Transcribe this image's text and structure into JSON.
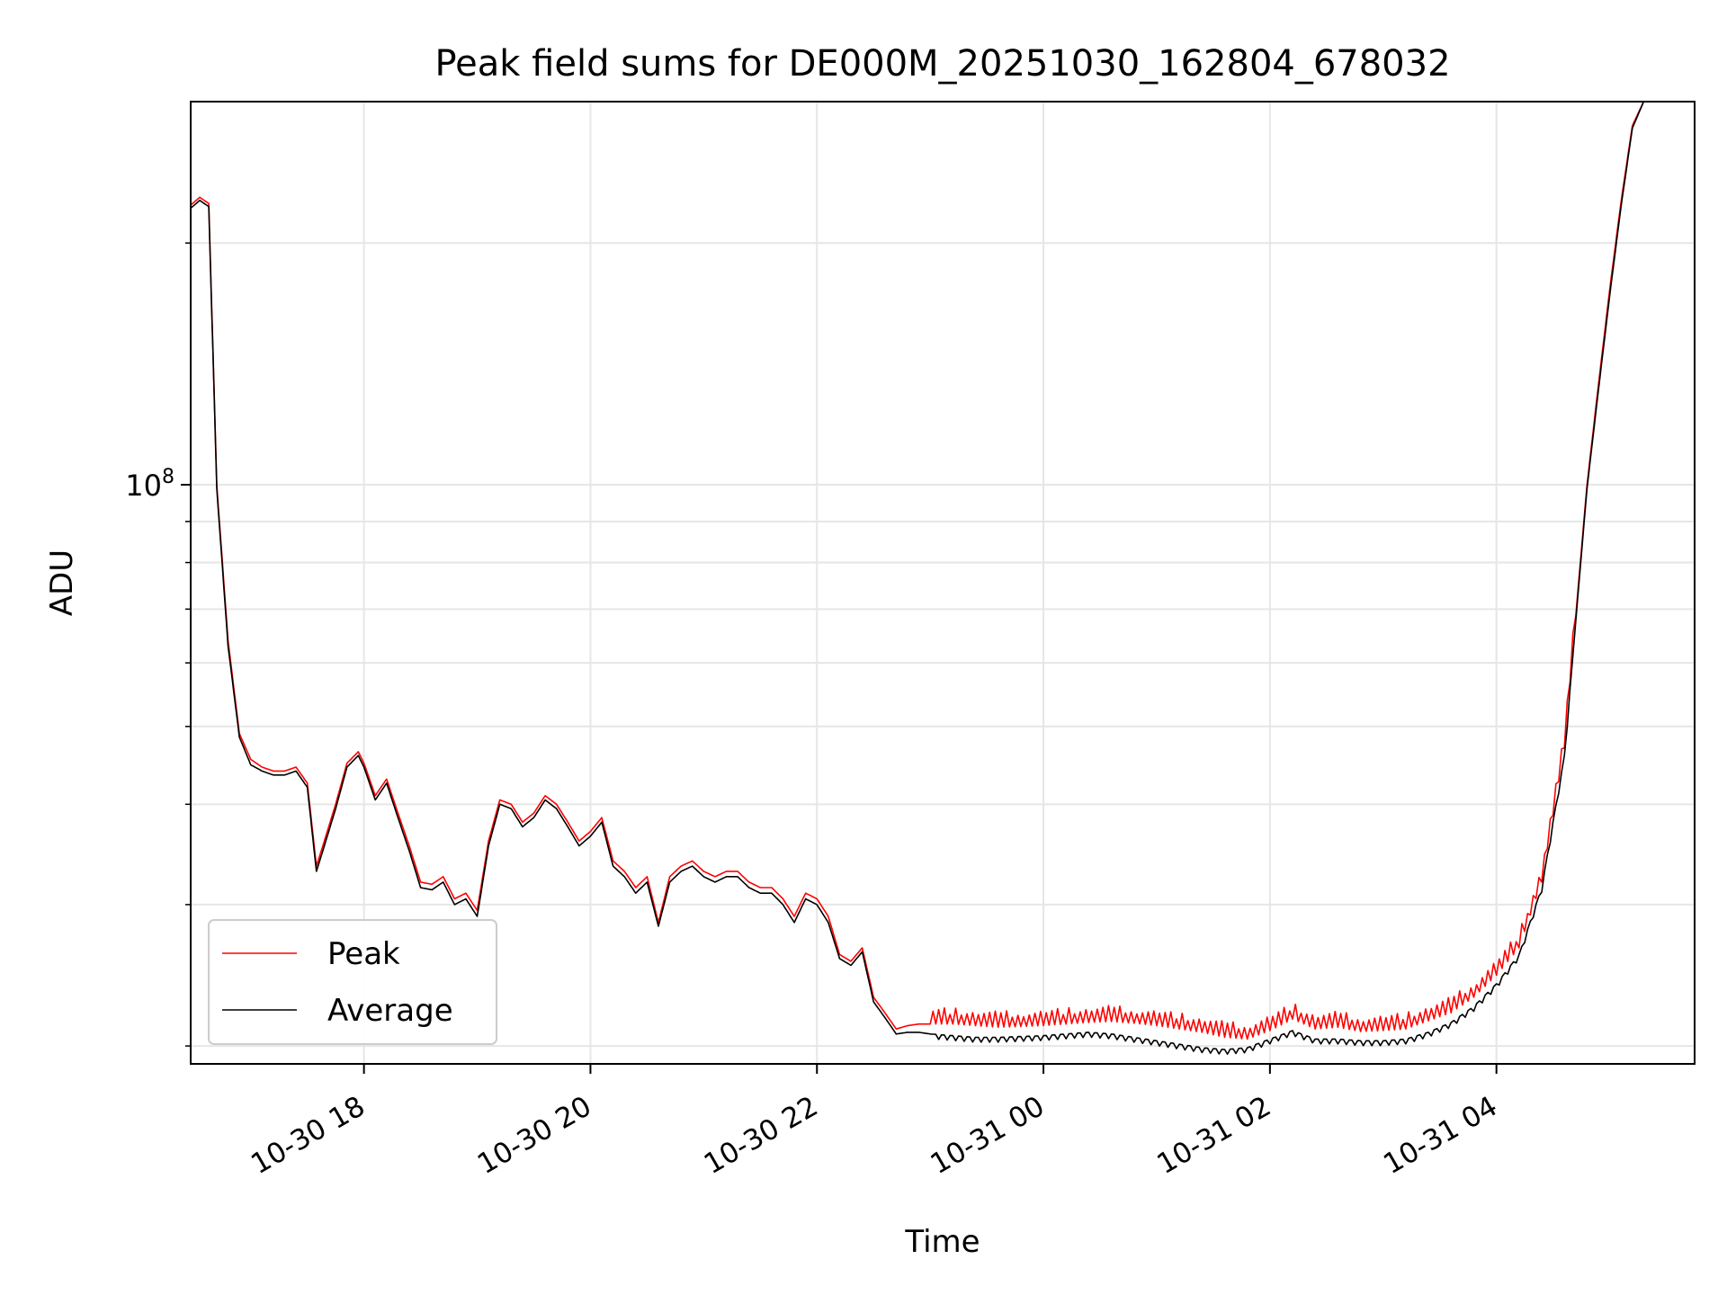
{
  "chart_data": {
    "type": "line",
    "title": "Peak field sums for DE000M_20251030_162804_678032",
    "xlabel": "Time",
    "ylabel": "ADU",
    "yscale": "log",
    "grid": true,
    "legend_position": "lower-left",
    "xlim": [
      16.47,
      29.75
    ],
    "ylim": [
      19000000,
      300000000
    ],
    "x_unit": "hours since 2025-10-30 00:00",
    "x_ticks": [
      {
        "value": 18,
        "label": "10-30 18"
      },
      {
        "value": 20,
        "label": "10-30 20"
      },
      {
        "value": 22,
        "label": "10-30 22"
      },
      {
        "value": 24,
        "label": "10-31 00"
      },
      {
        "value": 26,
        "label": "10-31 02"
      },
      {
        "value": 28,
        "label": "10-31 04"
      }
    ],
    "y_major_ticks": [
      {
        "value": 100000000,
        "base": "10",
        "exp": "8"
      }
    ],
    "y_minor_ticks": [
      20000000,
      30000000,
      40000000,
      50000000,
      60000000,
      70000000,
      80000000,
      90000000,
      200000000
    ],
    "series": [
      {
        "name": "Peak",
        "color": "#ff0000",
        "x": [
          16.47,
          16.55,
          16.63,
          16.7,
          16.8,
          16.9,
          17.0,
          17.1,
          17.2,
          17.3,
          17.4,
          17.5,
          17.58,
          17.65,
          17.75,
          17.85,
          17.95,
          18.0,
          18.1,
          18.2,
          18.3,
          18.4,
          18.5,
          18.6,
          18.7,
          18.8,
          18.9,
          19.0,
          19.1,
          19.2,
          19.3,
          19.4,
          19.5,
          19.6,
          19.7,
          19.8,
          19.9,
          20.0,
          20.1,
          20.2,
          20.3,
          20.4,
          20.5,
          20.6,
          20.7,
          20.8,
          20.9,
          21.0,
          21.1,
          21.2,
          21.3,
          21.4,
          21.5,
          21.6,
          21.7,
          21.8,
          21.9,
          22.0,
          22.1,
          22.2,
          22.3,
          22.4,
          22.5,
          22.6,
          22.7,
          22.8,
          22.9,
          23.0,
          23.2,
          23.4,
          23.6,
          23.8,
          24.0,
          24.2,
          24.4,
          24.6,
          24.8,
          25.0,
          25.2,
          25.4,
          25.6,
          25.8,
          26.0,
          26.2,
          26.4,
          26.6,
          26.8,
          27.0,
          27.2,
          27.4,
          27.6,
          27.8,
          28.0,
          28.2,
          28.4,
          28.6,
          28.8,
          28.9,
          29.0,
          29.1,
          29.2,
          29.3,
          29.4,
          29.5,
          29.6,
          29.75
        ],
        "values": [
          223000000,
          228000000,
          224000000,
          100000000,
          64000000,
          49000000,
          45500000,
          44500000,
          44000000,
          44000000,
          44500000,
          42500000,
          33500000,
          36000000,
          40000000,
          45000000,
          46500000,
          45000000,
          41000000,
          43000000,
          39000000,
          35500000,
          32000000,
          31800000,
          32500000,
          30500000,
          31000000,
          29500000,
          36000000,
          40500000,
          40000000,
          38000000,
          39000000,
          41000000,
          40000000,
          38000000,
          36000000,
          37000000,
          38500000,
          34000000,
          33000000,
          31500000,
          32500000,
          28500000,
          32500000,
          33500000,
          34000000,
          33000000,
          32500000,
          33000000,
          33000000,
          32000000,
          31500000,
          31500000,
          30500000,
          29000000,
          31000000,
          30500000,
          29000000,
          26000000,
          25500000,
          26500000,
          23000000,
          22000000,
          21000000,
          21200000,
          21300000,
          21300000,
          21300000,
          21200000,
          21100000,
          21150000,
          21200000,
          21300000,
          21400000,
          21450000,
          21350000,
          21200000,
          21000000,
          20800000,
          20500000,
          20400000,
          20900000,
          21600000,
          21000000,
          21100000,
          20850000,
          20900000,
          21000000,
          21500000,
          22000000,
          23000000,
          24500000,
          26500000,
          32000000,
          47000000,
          100000000,
          133000000,
          175000000,
          225000000,
          280000000,
          300000000,
          300000000,
          300000000,
          300000000,
          300000000
        ]
      },
      {
        "name": "Average",
        "color": "#000000",
        "x": [
          16.47,
          16.55,
          16.63,
          16.7,
          16.8,
          16.9,
          17.0,
          17.1,
          17.2,
          17.3,
          17.4,
          17.5,
          17.58,
          17.65,
          17.75,
          17.85,
          17.95,
          18.0,
          18.1,
          18.2,
          18.3,
          18.4,
          18.5,
          18.6,
          18.7,
          18.8,
          18.9,
          19.0,
          19.1,
          19.2,
          19.3,
          19.4,
          19.5,
          19.6,
          19.7,
          19.8,
          19.9,
          20.0,
          20.1,
          20.2,
          20.3,
          20.4,
          20.5,
          20.6,
          20.7,
          20.8,
          20.9,
          21.0,
          21.1,
          21.2,
          21.3,
          21.4,
          21.5,
          21.6,
          21.7,
          21.8,
          21.9,
          22.0,
          22.1,
          22.2,
          22.3,
          22.4,
          22.5,
          22.6,
          22.7,
          22.8,
          22.9,
          23.0,
          23.2,
          23.4,
          23.6,
          23.8,
          24.0,
          24.2,
          24.4,
          24.6,
          24.8,
          25.0,
          25.2,
          25.4,
          25.6,
          25.8,
          26.0,
          26.2,
          26.4,
          26.6,
          26.8,
          27.0,
          27.2,
          27.4,
          27.6,
          27.8,
          28.0,
          28.2,
          28.4,
          28.6,
          28.8,
          28.9,
          29.0,
          29.1,
          29.2,
          29.3,
          29.4,
          29.5,
          29.6,
          29.75
        ],
        "values": [
          221000000,
          226000000,
          222000000,
          99000000,
          63000000,
          48500000,
          44800000,
          44000000,
          43500000,
          43500000,
          44000000,
          42000000,
          33000000,
          35500000,
          39500000,
          44500000,
          46000000,
          44500000,
          40500000,
          42500000,
          38500000,
          35000000,
          31500000,
          31300000,
          32000000,
          30000000,
          30500000,
          29000000,
          35500000,
          40000000,
          39500000,
          37500000,
          38500000,
          40500000,
          39500000,
          37500000,
          35500000,
          36500000,
          38000000,
          33500000,
          32500000,
          31000000,
          32000000,
          28200000,
          32000000,
          33000000,
          33500000,
          32500000,
          32000000,
          32500000,
          32500000,
          31500000,
          31000000,
          31000000,
          30000000,
          28500000,
          30500000,
          30000000,
          28500000,
          25700000,
          25200000,
          26200000,
          22700000,
          21700000,
          20700000,
          20800000,
          20800000,
          20700000,
          20600000,
          20500000,
          20500000,
          20550000,
          20600000,
          20700000,
          20800000,
          20700000,
          20500000,
          20300000,
          20100000,
          19900000,
          19800000,
          19900000,
          20400000,
          20900000,
          20400000,
          20400000,
          20300000,
          20300000,
          20400000,
          20800000,
          21400000,
          22400000,
          23900000,
          26000000,
          31500000,
          46000000,
          99000000,
          131000000,
          172000000,
          222000000,
          278000000,
          300000000,
          300000000,
          300000000,
          300000000,
          300000000
        ]
      }
    ]
  }
}
